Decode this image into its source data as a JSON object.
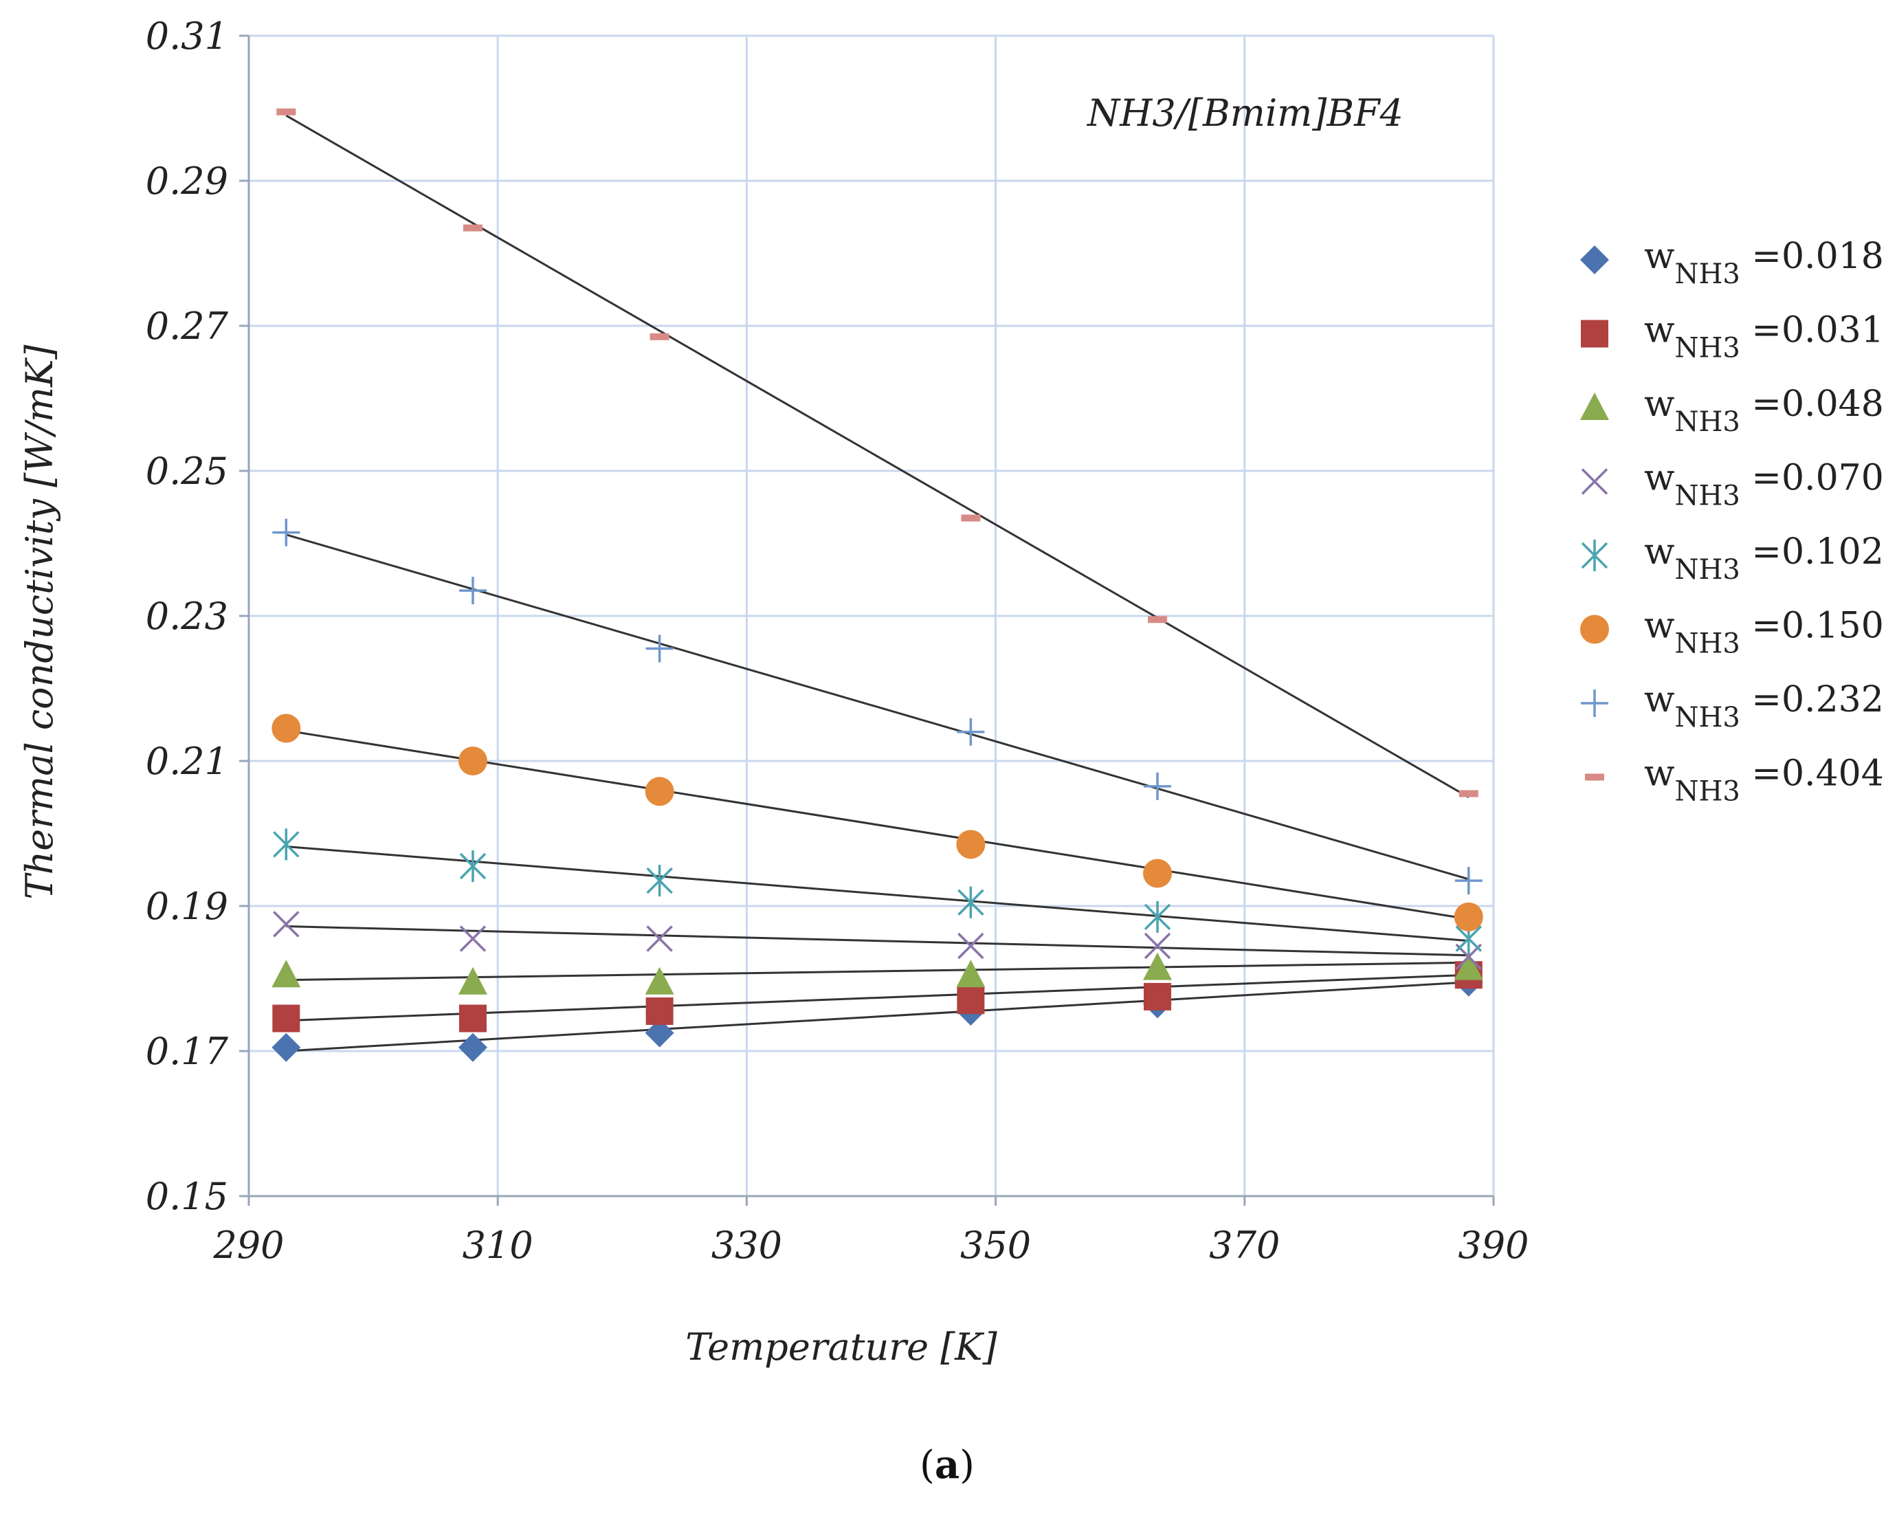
{
  "chart_data": {
    "type": "scatter",
    "annotation": "NH3/[Bmim]BF4",
    "xlabel": "Temperature [K]",
    "ylabel": "Thermal conductivity [W/mK]",
    "xlim": [
      290,
      390
    ],
    "ylim": [
      0.15,
      0.31
    ],
    "xticks": [
      "290",
      "310",
      "330",
      "350",
      "370",
      "390"
    ],
    "yticks": [
      "0.15",
      "0.17",
      "0.19",
      "0.21",
      "0.23",
      "0.25",
      "0.27",
      "0.29",
      "0.31"
    ],
    "grid": true,
    "legend_position": "right",
    "x": [
      293,
      308,
      323,
      348,
      363,
      388
    ],
    "series": [
      {
        "name": "w_NH3 =0.018",
        "label_main": "w",
        "label_sub": "NH3",
        "label_value": " =0.018",
        "marker": "diamond",
        "color": "#4a73b0",
        "values": [
          0.1705,
          0.1705,
          0.1725,
          0.1755,
          0.1765,
          0.1795
        ],
        "fit": [
          0.17,
          0.1795
        ]
      },
      {
        "name": "w_NH3 =0.031",
        "label_main": "w",
        "label_sub": "NH3",
        "label_value": " =0.031",
        "marker": "square",
        "color": "#b04140",
        "values": [
          0.1745,
          0.1745,
          0.1755,
          0.177,
          0.1775,
          0.1805
        ],
        "fit": [
          0.1742,
          0.1805
        ]
      },
      {
        "name": "w_NH3 =0.048",
        "label_main": "w",
        "label_sub": "NH3",
        "label_value": " =0.048",
        "marker": "triangle",
        "color": "#8aab4e",
        "values": [
          0.1805,
          0.1795,
          0.1795,
          0.1805,
          0.1815,
          0.1815
        ],
        "fit": [
          0.1798,
          0.1822
        ]
      },
      {
        "name": "w_NH3 =0.070",
        "label_main": "w",
        "label_sub": "NH3",
        "label_value": " =0.070",
        "marker": "x",
        "color": "#8a74a8",
        "values": [
          0.1875,
          0.1855,
          0.1855,
          0.1845,
          0.1845,
          0.183
        ],
        "fit": [
          0.1872,
          0.1832
        ]
      },
      {
        "name": "w_NH3 =0.102",
        "label_main": "w",
        "label_sub": "NH3",
        "label_value": " =0.102",
        "marker": "asterisk",
        "color": "#4aa4b0",
        "values": [
          0.1985,
          0.1955,
          0.1935,
          0.1905,
          0.1885,
          0.1855
        ],
        "fit": [
          0.1982,
          0.1852
        ]
      },
      {
        "name": "w_NH3 =0.150",
        "label_main": "w",
        "label_sub": "NH3",
        "label_value": " =0.150",
        "marker": "circle",
        "color": "#e48a3a",
        "values": [
          0.2145,
          0.21,
          0.2058,
          0.1985,
          0.1945,
          0.1885
        ],
        "fit": [
          0.2142,
          0.1882
        ]
      },
      {
        "name": "w_NH3 =0.232",
        "label_main": "w",
        "label_sub": "NH3",
        "label_value": " =0.232",
        "marker": "plus",
        "color": "#6f96cc",
        "values": [
          0.2415,
          0.2335,
          0.2255,
          0.214,
          0.2065,
          0.1935
        ],
        "fit": [
          0.2412,
          0.1937
        ]
      },
      {
        "name": "w_NH3 =0.404",
        "label_main": "w",
        "label_sub": "NH3",
        "label_value": " =0.404",
        "marker": "dash",
        "color": "#d88a86",
        "values": [
          0.2995,
          0.2835,
          0.2685,
          0.2435,
          0.2295,
          0.2055
        ],
        "fit": [
          0.299,
          0.205
        ]
      }
    ]
  },
  "caption": {
    "open": "(",
    "letter": "a",
    "close": ")"
  }
}
